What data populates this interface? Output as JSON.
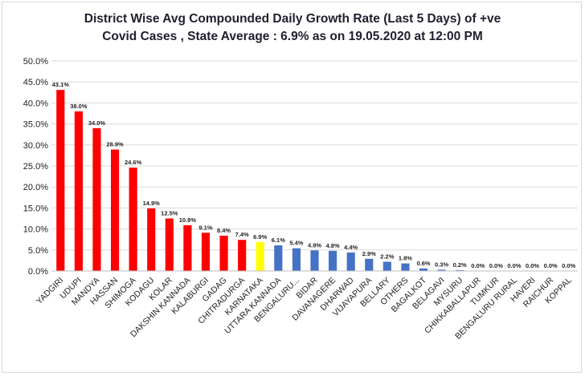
{
  "chart_data": {
    "type": "bar",
    "title_line1": "District Wise Avg Compounded Daily Growth Rate (Last 5 Days) of +ve",
    "title_line2": "Covid Cases , State Average : 6.9% as on 19.05.2020 at 12:00 PM",
    "xlabel": "",
    "ylabel": "",
    "ylim": [
      0,
      50
    ],
    "ytick_step": 5,
    "ytick_labels": [
      "0.0%",
      "5.0%",
      "10.0%",
      "15.0%",
      "20.0%",
      "25.0%",
      "30.0%",
      "35.0%",
      "40.0%",
      "45.0%",
      "50.0%"
    ],
    "grid": true,
    "legend": "none",
    "categories": [
      "YADGIRI",
      "UDUPI",
      "MANDYA",
      "HASSAN",
      "SHIMOGA",
      "KODAGU",
      "KOLAR",
      "DAKSHIN KANNADA",
      "KALABURGI",
      "GADAG",
      "CHITRADURGA",
      "KARNATAKA",
      "UTTARA KANNADA",
      "BENGALURU...",
      "BIDAR",
      "DAVANAGERE",
      "DHARWAD",
      "VIJAYAPURA",
      "BELLARY",
      "OTHERS",
      "BAGALKOT",
      "BELAGAVI",
      "MYSURU",
      "CHIKKABALLAPUR",
      "TUMKUR",
      "BENGALURU RURAL",
      "HAVERI",
      "RAICHUR",
      "KOPPAL"
    ],
    "values": [
      43.1,
      38.0,
      34.0,
      28.9,
      24.6,
      14.9,
      12.5,
      10.9,
      9.1,
      8.4,
      7.4,
      6.9,
      6.1,
      5.4,
      4.9,
      4.8,
      4.4,
      2.9,
      2.2,
      1.8,
      0.6,
      0.3,
      0.2,
      0.0,
      0.0,
      0.0,
      0.0,
      0.0,
      0.0
    ],
    "value_labels": [
      "43.1%",
      "38.0%",
      "34.0%",
      "28.9%",
      "24.6%",
      "14.9%",
      "12.5%",
      "10.9%",
      "9.1%",
      "8.4%",
      "7.4%",
      "6.9%",
      "6.1%",
      "5.4%",
      "4.9%",
      "4.8%",
      "4.4%",
      "2.9%",
      "2.2%",
      "1.8%",
      "0.6%",
      "0.3%",
      "0.2%",
      "0.0%",
      "0.0%",
      "0.0%",
      "0.0%",
      "0.0%",
      "0.0%"
    ],
    "bar_colors": [
      "#ff0000",
      "#ff0000",
      "#ff0000",
      "#ff0000",
      "#ff0000",
      "#ff0000",
      "#ff0000",
      "#ff0000",
      "#ff0000",
      "#ff0000",
      "#ff0000",
      "#ffff00",
      "#4472c4",
      "#4472c4",
      "#4472c4",
      "#4472c4",
      "#4472c4",
      "#4472c4",
      "#4472c4",
      "#4472c4",
      "#4472c4",
      "#4472c4",
      "#4472c4",
      "#4472c4",
      "#4472c4",
      "#4472c4",
      "#4472c4",
      "#4472c4",
      "#4472c4"
    ]
  }
}
